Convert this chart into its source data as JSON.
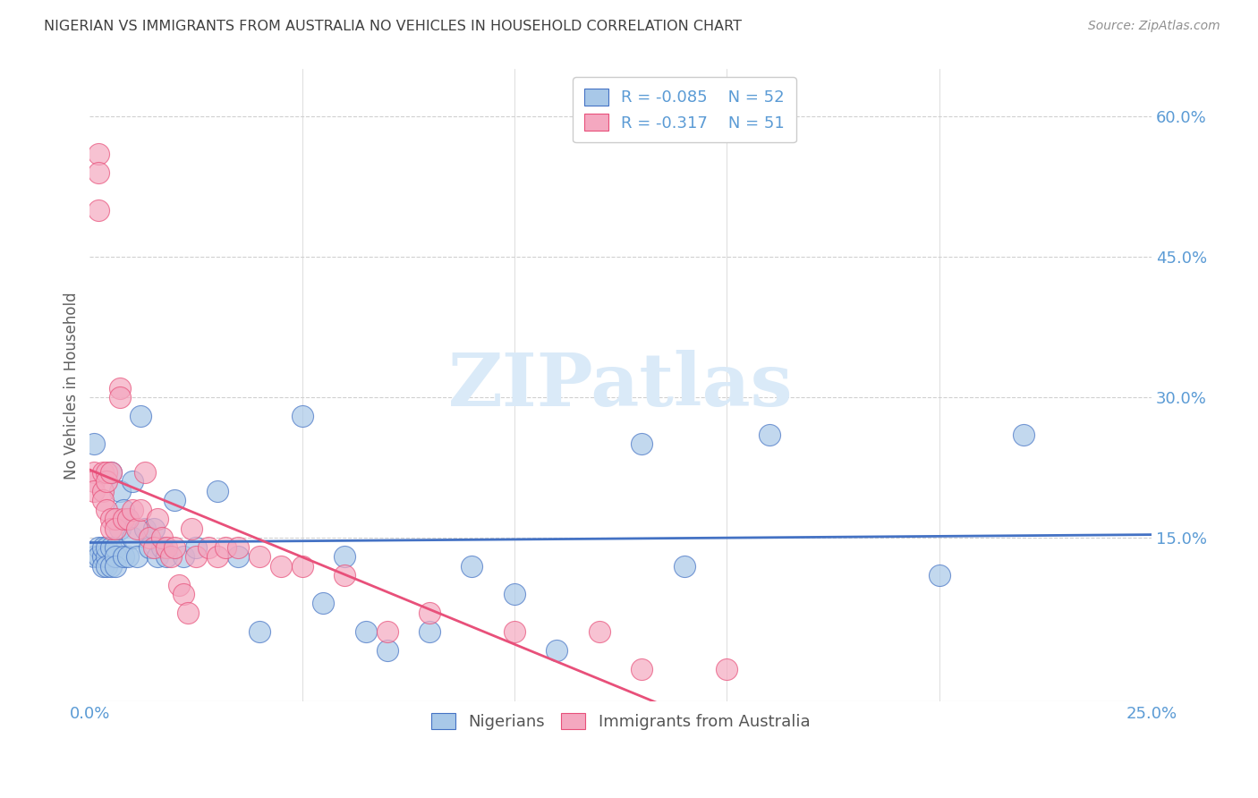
{
  "title": "NIGERIAN VS IMMIGRANTS FROM AUSTRALIA NO VEHICLES IN HOUSEHOLD CORRELATION CHART",
  "source": "Source: ZipAtlas.com",
  "ylabel": "No Vehicles in Household",
  "watermark": "ZIPatlas",
  "legend_nigerians": "Nigerians",
  "legend_immigrants": "Immigrants from Australia",
  "R_nigerians": -0.085,
  "N_nigerians": 52,
  "R_immigrants": -0.317,
  "N_immigrants": 51,
  "color_nigerians": "#a8c8e8",
  "color_immigrants": "#f4a8c0",
  "color_line_nigerians": "#4472c4",
  "color_line_immigrants": "#e8507a",
  "color_axis_labels": "#5b9bd5",
  "color_grid": "#d0d0d0",
  "color_title": "#404040",
  "color_source": "#909090",
  "color_ylabel": "#606060",
  "color_watermark": "#daeaf8",
  "xmin": 0.0,
  "xmax": 0.25,
  "ymin": -0.025,
  "ymax": 0.65,
  "xticks": [
    0.0,
    0.25
  ],
  "xtick_labels": [
    "0.0%",
    "25.0%"
  ],
  "yticks_right": [
    0.0,
    0.15,
    0.3,
    0.45,
    0.6
  ],
  "ytick_labels_right": [
    "",
    "15.0%",
    "30.0%",
    "45.0%",
    "60.0%"
  ],
  "grid_yticks": [
    0.15,
    0.3,
    0.45,
    0.6
  ],
  "nigerian_x": [
    0.001,
    0.001,
    0.002,
    0.002,
    0.003,
    0.003,
    0.003,
    0.004,
    0.004,
    0.004,
    0.005,
    0.005,
    0.005,
    0.006,
    0.006,
    0.006,
    0.007,
    0.007,
    0.008,
    0.008,
    0.009,
    0.009,
    0.01,
    0.01,
    0.011,
    0.012,
    0.013,
    0.014,
    0.015,
    0.016,
    0.017,
    0.018,
    0.02,
    0.022,
    0.025,
    0.03,
    0.035,
    0.04,
    0.05,
    0.055,
    0.06,
    0.065,
    0.07,
    0.08,
    0.09,
    0.1,
    0.11,
    0.13,
    0.14,
    0.16,
    0.2,
    0.22
  ],
  "nigerian_y": [
    0.25,
    0.13,
    0.14,
    0.13,
    0.13,
    0.12,
    0.14,
    0.13,
    0.14,
    0.12,
    0.22,
    0.14,
    0.12,
    0.14,
    0.13,
    0.12,
    0.2,
    0.16,
    0.13,
    0.18,
    0.17,
    0.13,
    0.21,
    0.15,
    0.13,
    0.28,
    0.16,
    0.14,
    0.16,
    0.13,
    0.14,
    0.13,
    0.19,
    0.13,
    0.14,
    0.2,
    0.13,
    0.05,
    0.28,
    0.08,
    0.13,
    0.05,
    0.03,
    0.05,
    0.12,
    0.09,
    0.03,
    0.25,
    0.12,
    0.26,
    0.11,
    0.26
  ],
  "immigrant_x": [
    0.001,
    0.001,
    0.001,
    0.002,
    0.002,
    0.002,
    0.003,
    0.003,
    0.003,
    0.004,
    0.004,
    0.004,
    0.005,
    0.005,
    0.005,
    0.006,
    0.006,
    0.007,
    0.007,
    0.008,
    0.009,
    0.01,
    0.011,
    0.012,
    0.013,
    0.014,
    0.015,
    0.016,
    0.017,
    0.018,
    0.019,
    0.02,
    0.021,
    0.022,
    0.023,
    0.024,
    0.025,
    0.028,
    0.03,
    0.032,
    0.035,
    0.04,
    0.045,
    0.05,
    0.06,
    0.07,
    0.08,
    0.1,
    0.12,
    0.13,
    0.15
  ],
  "immigrant_y": [
    0.22,
    0.21,
    0.2,
    0.56,
    0.54,
    0.5,
    0.22,
    0.2,
    0.19,
    0.22,
    0.21,
    0.18,
    0.17,
    0.16,
    0.22,
    0.17,
    0.16,
    0.31,
    0.3,
    0.17,
    0.17,
    0.18,
    0.16,
    0.18,
    0.22,
    0.15,
    0.14,
    0.17,
    0.15,
    0.14,
    0.13,
    0.14,
    0.1,
    0.09,
    0.07,
    0.16,
    0.13,
    0.14,
    0.13,
    0.14,
    0.14,
    0.13,
    0.12,
    0.12,
    0.11,
    0.05,
    0.07,
    0.05,
    0.05,
    0.01,
    0.01
  ]
}
